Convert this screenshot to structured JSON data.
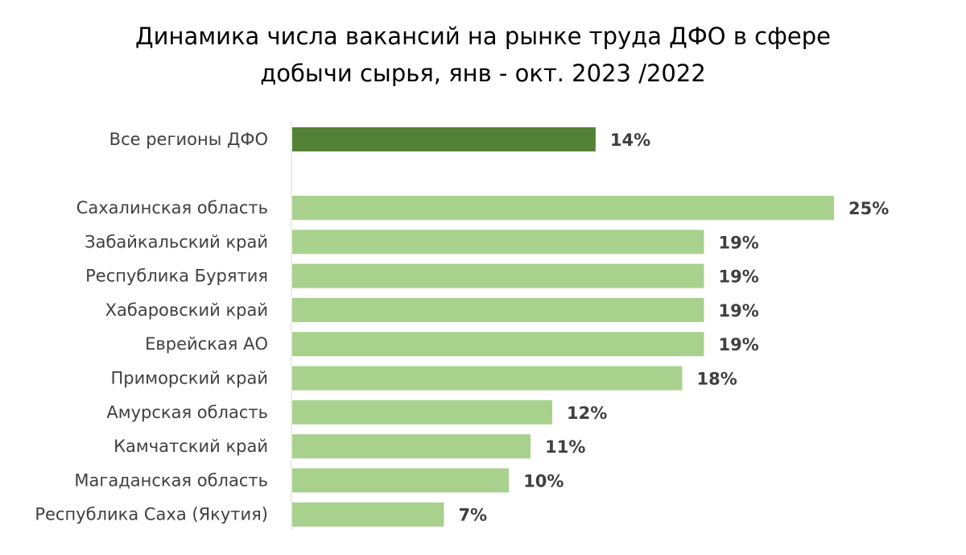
{
  "chart_data": {
    "type": "bar",
    "orientation": "horizontal",
    "title_lines": [
      "Динамика числа вакансий на рынке труда ДФО в сфере",
      "добычи сырья, янв - окт. 2023 /2022"
    ],
    "categories": [
      "Все регионы ДФО",
      "Сахалинская область",
      "Забайкальский край",
      "Республика Бурятия",
      "Хабаровский край",
      "Еврейская АО",
      "Приморский край",
      "Амурская область",
      "Камчатский край",
      "Магаданская область",
      "Республика Саха (Якутия)"
    ],
    "values": [
      14,
      25,
      19,
      19,
      19,
      19,
      18,
      12,
      11,
      10,
      7
    ],
    "value_labels": [
      "14%",
      "25%",
      "19%",
      "19%",
      "19%",
      "19%",
      "18%",
      "12%",
      "11%",
      "10%",
      "7%"
    ],
    "units": "%",
    "highlight_index": 0,
    "xlim": [
      0,
      25
    ],
    "colors": {
      "highlight": "#538135",
      "bar": "#a9d18e",
      "axis": "#d9d9d9",
      "text": "#404040"
    },
    "xlabel": "",
    "ylabel": "",
    "grid": false,
    "legend": "none"
  }
}
